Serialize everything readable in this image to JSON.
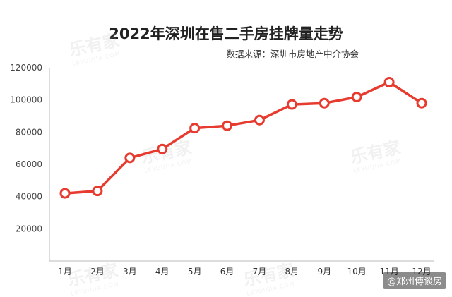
{
  "title": "2022年深圳在售二手房挂牌量走势",
  "source": "数据来源：深圳市房地产中介协会",
  "watermark_text": "乐有家",
  "corner_tag": "@郑州傅谈房",
  "colors": {
    "line": "#e63b2e",
    "marker_fill": "#ffffff",
    "axis": "#bbbbbb",
    "text": "#222222"
  },
  "chart_data": {
    "type": "line",
    "title": "2022年深圳在售二手房挂牌量走势",
    "xlabel": "",
    "ylabel": "",
    "categories": [
      "1月",
      "2月",
      "3月",
      "4月",
      "5月",
      "6月",
      "7月",
      "8月",
      "9月",
      "10月",
      "11月",
      "12月"
    ],
    "series": [
      {
        "values": [
          42000,
          43500,
          64000,
          69500,
          82500,
          84000,
          87500,
          97200,
          98000,
          101800,
          111000,
          98000
        ]
      }
    ],
    "yticks": [
      "20000",
      "40000",
      "60000",
      "80000",
      "100000",
      "120000"
    ],
    "ylim": [
      0,
      120000
    ],
    "grid": false,
    "legend": "none"
  }
}
